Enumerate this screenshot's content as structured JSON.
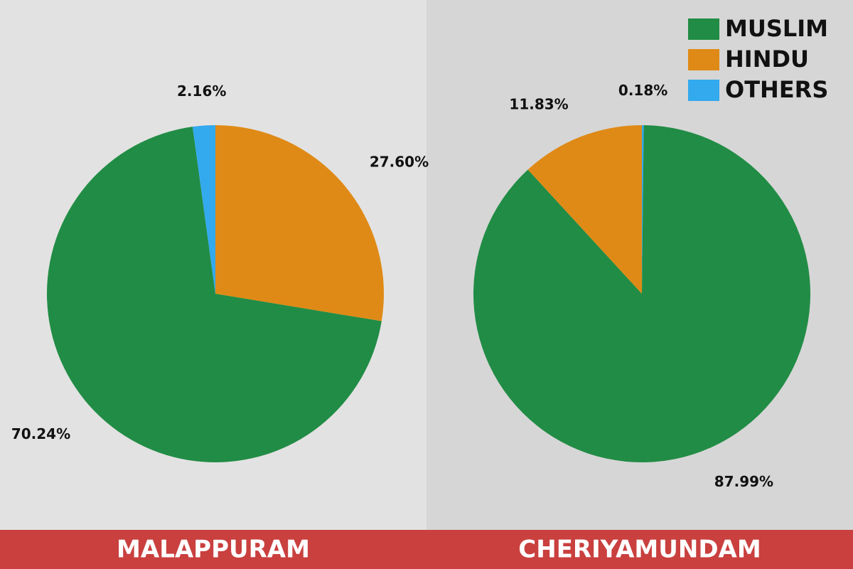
{
  "chart_data": [
    {
      "type": "pie",
      "title": "MALAPPURAM",
      "categories": [
        "HINDU",
        "MUSLIM",
        "OTHERS"
      ],
      "values": [
        27.6,
        70.24,
        2.16
      ],
      "value_labels": [
        "27.60%",
        "70.24%",
        "2.16%"
      ]
    },
    {
      "type": "pie",
      "title": "CHERIYAMUNDAM",
      "categories": [
        "OTHERS",
        "MUSLIM",
        "HINDU"
      ],
      "values": [
        0.18,
        87.99,
        11.83
      ],
      "value_labels": [
        "0.18%",
        "87.99%",
        "11.83%"
      ]
    }
  ],
  "legend": {
    "position": "top-right",
    "items": [
      {
        "name": "MUSLIM",
        "color": "#218c45"
      },
      {
        "name": "HINDU",
        "color": "#df8a16"
      },
      {
        "name": "OTHERS",
        "color": "#33a9ee"
      }
    ]
  }
}
